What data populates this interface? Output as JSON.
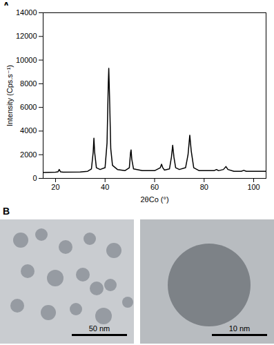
{
  "chart_data": {
    "type": "line",
    "x_label": "2θCo (°)",
    "y_label": "Intensity (Cps.s⁻¹)",
    "x": [
      15,
      20,
      21,
      21.5,
      22,
      23,
      30,
      33,
      34.5,
      35.2,
      35.5,
      35.8,
      36.5,
      38,
      40,
      40.8,
      41.3,
      41.5,
      41.8,
      42.3,
      43,
      45,
      48,
      49.8,
      50.3,
      50.5,
      50.8,
      51.5,
      55,
      60,
      62.3,
      62.8,
      63.3,
      64,
      66,
      66.8,
      67.3,
      67.8,
      68.5,
      70,
      72.5,
      73.5,
      74.2,
      74.8,
      75.8,
      78,
      84,
      85,
      85.8,
      87.8,
      88.8,
      89.6,
      92,
      95,
      96,
      97,
      105
    ],
    "values": [
      500,
      520,
      560,
      750,
      560,
      520,
      540,
      600,
      800,
      2200,
      3400,
      2200,
      900,
      750,
      900,
      3000,
      8000,
      9300,
      7000,
      2500,
      1100,
      750,
      650,
      900,
      2200,
      2400,
      1600,
      800,
      650,
      650,
      900,
      1200,
      900,
      700,
      800,
      1800,
      2800,
      1800,
      900,
      750,
      900,
      2000,
      3650,
      2300,
      900,
      650,
      650,
      750,
      650,
      750,
      1000,
      750,
      600,
      600,
      680,
      600,
      600
    ],
    "color": "#000000",
    "xlim": [
      15,
      105
    ],
    "xticks": [
      20,
      40,
      60,
      80,
      100
    ],
    "ylim": [
      0,
      14000
    ],
    "yticks": [
      0,
      2000,
      4000,
      6000,
      8000,
      10000,
      12000,
      14000
    ],
    "grid": false
  },
  "figure": {
    "panel_labels": [
      "A",
      "B"
    ],
    "micrographs": [
      {
        "scale_bar": "50 nm"
      },
      {
        "scale_bar": "10 nm"
      }
    ]
  }
}
